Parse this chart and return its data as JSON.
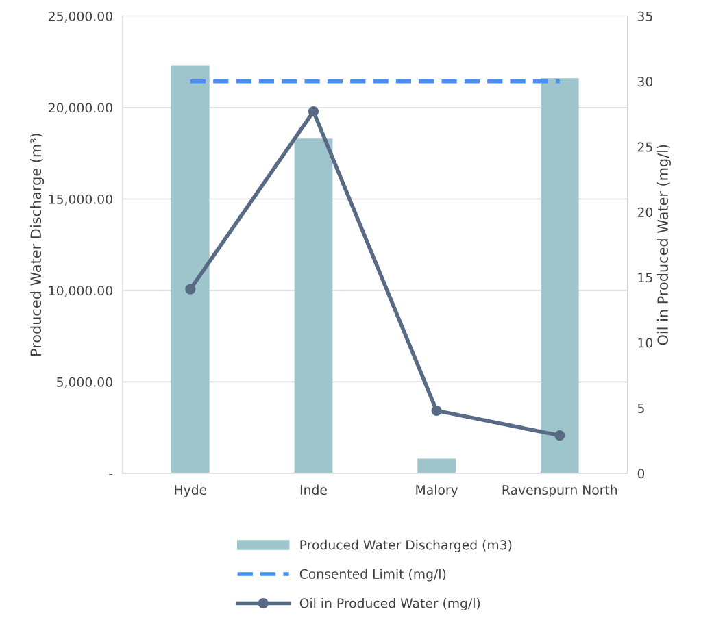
{
  "chart_data": {
    "type": "bar",
    "categories": [
      "Hyde",
      "Inde",
      "Malory",
      "Ravenspurn North"
    ],
    "ylabel": "Produced Water Discharge (m³)",
    "y2label": "Oil in Produced Water (mg/l)",
    "series": [
      {
        "name": "Produced Water Discharged (m3)",
        "color": "#9fc5cc",
        "values": [
          22300,
          18300,
          800,
          21600
        ]
      },
      {
        "name": "Consented Limit (mg/l)",
        "type": "line",
        "axis": "y2",
        "color": "#4a8ef0",
        "line_style": "dashed",
        "marker": "none",
        "values": [
          30,
          30,
          30,
          30
        ]
      },
      {
        "name": "Oil in Produced Water (mg/l)",
        "type": "line",
        "axis": "y2",
        "color": "#596a84",
        "line_style": "solid",
        "marker": "circle",
        "values": [
          14.1,
          27.7,
          4.8,
          2.9
        ]
      }
    ],
    "ylim": [
      0,
      25000
    ],
    "yticks": [
      {
        "value": 0,
        "label": "-"
      },
      {
        "value": 5000,
        "label": "5,000.00"
      },
      {
        "value": 10000,
        "label": "10,000.00"
      },
      {
        "value": 15000,
        "label": "15,000.00"
      },
      {
        "value": 20000,
        "label": "20,000.00"
      },
      {
        "value": 25000,
        "label": "25,000.00"
      }
    ],
    "y2lim": [
      0,
      35
    ],
    "y2ticks": [
      0,
      5,
      10,
      15,
      20,
      25,
      30,
      35
    ],
    "grid": "y",
    "legend": "bottom"
  }
}
